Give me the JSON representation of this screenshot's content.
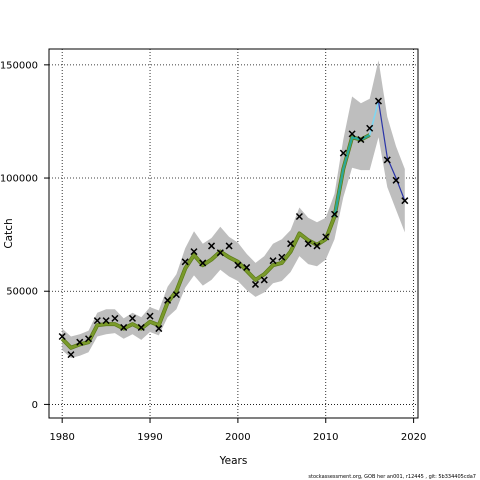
{
  "chart_data": {
    "type": "line",
    "xlabel": "Years",
    "ylabel": "Catch",
    "xlim": [
      1978.5,
      2020.5
    ],
    "ylim": [
      -6000,
      157000
    ],
    "x_ticks": [
      1980,
      1990,
      2000,
      2010,
      2020
    ],
    "y_ticks": [
      0,
      50000,
      100000,
      150000
    ],
    "x_tick_labels": [
      "1980",
      "1990",
      "2000",
      "2010",
      "2020"
    ],
    "y_tick_labels": [
      "0",
      "50000",
      "100000",
      "150000"
    ],
    "grid": "dotted",
    "colors": {
      "band": "#bebebe",
      "fit_line": "#7a9a2a",
      "fit_edge": "#5a7a18",
      "teal_line": "#2aa89a",
      "cyan_line": "#7fd6f0",
      "forecast_line": "#2a35a8",
      "observed_marker": "#000000",
      "grid": "#000000"
    },
    "observed": {
      "x": [
        1980,
        1981,
        1982,
        1983,
        1984,
        1985,
        1986,
        1987,
        1988,
        1989,
        1990,
        1991,
        1992,
        1993,
        1994,
        1995,
        1996,
        1997,
        1998,
        1999,
        2000,
        2001,
        2002,
        2003,
        2004,
        2005,
        2006,
        2007,
        2008,
        2009,
        2010,
        2011,
        2012,
        2013,
        2014,
        2015,
        2016,
        2017,
        2018,
        2019
      ],
      "y": [
        30000,
        22000,
        27500,
        29000,
        37000,
        37000,
        38000,
        34000,
        38000,
        34000,
        39000,
        33500,
        46000,
        48500,
        63000,
        67500,
        62500,
        70000,
        67000,
        70000,
        61500,
        60500,
        53000,
        55000,
        63500,
        65000,
        71000,
        83000,
        71000,
        70000,
        74000,
        84000,
        111000,
        119500,
        117000,
        122000,
        134000,
        108000,
        99000,
        90000
      ]
    },
    "fitted": {
      "x": [
        1980,
        1981,
        1982,
        1983,
        1984,
        1985,
        1986,
        1987,
        1988,
        1989,
        1990,
        1991,
        1992,
        1993,
        1994,
        1995,
        1996,
        1997,
        1998,
        1999,
        2000,
        2001,
        2002,
        2003,
        2004,
        2005,
        2006,
        2007,
        2008,
        2009,
        2010,
        2011,
        2012,
        2013,
        2014,
        2015
      ],
      "y": [
        29000,
        25000,
        26500,
        27500,
        35000,
        35500,
        35500,
        33500,
        35500,
        33500,
        36500,
        35000,
        45000,
        50000,
        60000,
        66000,
        61500,
        64000,
        67500,
        65000,
        63000,
        59000,
        55000,
        57500,
        61500,
        62500,
        67500,
        75500,
        72500,
        70500,
        73000,
        83000,
        104000,
        118000,
        117000,
        119000
      ]
    },
    "forecast": {
      "x": [
        2015,
        2016,
        2017,
        2018,
        2019
      ],
      "y": [
        119000,
        134000,
        109000,
        100000,
        90000
      ]
    },
    "band": {
      "x": [
        1980,
        1981,
        1982,
        1983,
        1984,
        1985,
        1986,
        1987,
        1988,
        1989,
        1990,
        1991,
        1992,
        1993,
        1994,
        1995,
        1996,
        1997,
        1998,
        1999,
        2000,
        2001,
        2002,
        2003,
        2004,
        2005,
        2006,
        2007,
        2008,
        2009,
        2010,
        2011,
        2012,
        2013,
        2014,
        2015,
        2016,
        2017,
        2018,
        2019
      ],
      "lower": [
        24000,
        20500,
        21500,
        23000,
        30000,
        31000,
        31500,
        29000,
        31000,
        28500,
        32000,
        30500,
        38500,
        42000,
        51500,
        57000,
        52500,
        55000,
        59500,
        56500,
        54500,
        50500,
        47500,
        49500,
        53500,
        54500,
        58500,
        65500,
        62000,
        61000,
        64000,
        73000,
        91500,
        104500,
        103500,
        103500,
        118000,
        96000,
        86000,
        76000
      ],
      "upper": [
        33500,
        30000,
        31000,
        32500,
        40500,
        42000,
        42000,
        38000,
        40500,
        38500,
        43000,
        41500,
        52000,
        57500,
        69000,
        76500,
        71000,
        73500,
        78500,
        74000,
        71500,
        66500,
        62500,
        65500,
        71000,
        73000,
        77000,
        87000,
        82500,
        80500,
        82500,
        93000,
        117000,
        136000,
        133000,
        135000,
        152000,
        127000,
        114000,
        104000
      ]
    }
  },
  "footer": {
    "text": "stockassessment.org, GOB her an001, r12445 , git: 5b334405cda7"
  }
}
